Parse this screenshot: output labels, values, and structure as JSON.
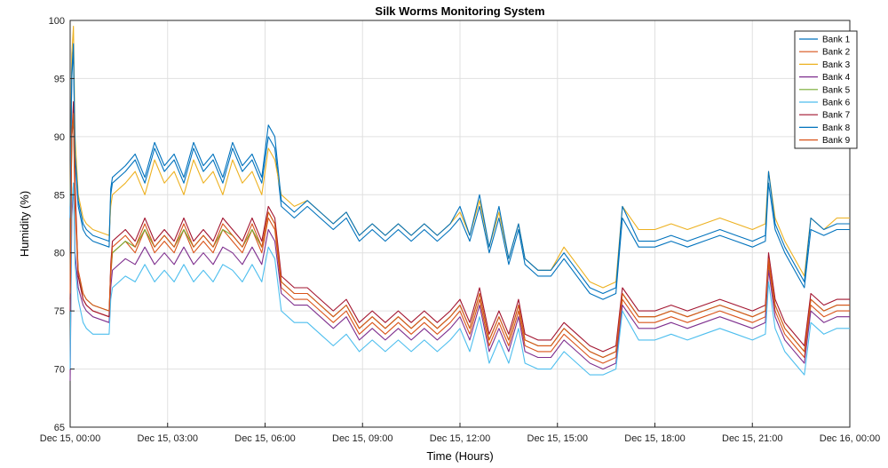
{
  "chart_data": {
    "type": "line",
    "title": "Silk Worms Monitoring System",
    "xlabel": "Time (Hours)",
    "ylabel": "Humidity (%)",
    "xlim": [
      0,
      24
    ],
    "ylim": [
      65,
      100
    ],
    "x_ticks": [
      0,
      3,
      6,
      9,
      12,
      15,
      18,
      21,
      24
    ],
    "x_tick_labels": [
      "Dec 15, 00:00",
      "Dec 15, 03:00",
      "Dec 15, 06:00",
      "Dec 15, 09:00",
      "Dec 15, 12:00",
      "Dec 15, 15:00",
      "Dec 15, 18:00",
      "Dec 15, 21:00",
      "Dec 16, 00:00"
    ],
    "y_ticks": [
      65,
      70,
      75,
      80,
      85,
      90,
      95,
      100
    ],
    "grid": true,
    "legend_position": "top-right",
    "x": [
      0,
      0.05,
      0.1,
      0.15,
      0.25,
      0.4,
      0.5,
      0.7,
      1.2,
      1.25,
      1.3,
      1.7,
      2.0,
      2.3,
      2.6,
      2.9,
      3.2,
      3.5,
      3.8,
      4.1,
      4.4,
      4.7,
      5.0,
      5.3,
      5.6,
      5.9,
      6.1,
      6.3,
      6.5,
      6.9,
      7.3,
      7.7,
      8.1,
      8.5,
      8.9,
      9.3,
      9.7,
      10.1,
      10.5,
      10.9,
      11.3,
      11.7,
      12.0,
      12.3,
      12.6,
      12.9,
      13.2,
      13.5,
      13.8,
      14.0,
      14.4,
      14.8,
      15.2,
      15.6,
      16.0,
      16.4,
      16.8,
      17.0,
      17.5,
      18.0,
      18.5,
      19.0,
      19.5,
      20.0,
      20.5,
      21.0,
      21.4,
      21.5,
      21.7,
      22.0,
      22.6,
      22.8,
      23.2,
      23.6,
      24.0
    ],
    "series": [
      {
        "name": "Bank 1",
        "color": "#0072BD",
        "values": [
          83,
          95,
          97.5,
          88,
          84,
          82,
          81.5,
          81,
          80.5,
          85,
          86,
          87,
          88,
          86,
          89,
          87,
          88,
          86,
          89,
          87,
          88,
          86,
          89,
          87,
          88,
          86,
          90,
          89,
          84,
          83,
          84,
          83,
          82,
          83,
          81,
          82,
          81,
          82,
          81,
          82,
          81,
          82,
          83,
          81,
          84,
          80,
          83,
          79,
          82,
          79,
          78,
          78,
          79.5,
          78,
          76.5,
          76,
          76.5,
          83,
          80.5,
          80.5,
          81,
          80.5,
          81,
          81.5,
          81,
          80.5,
          81,
          86,
          82,
          80,
          77,
          82,
          81.5,
          82,
          82
        ]
      },
      {
        "name": "Bank 2",
        "color": "#D95319",
        "values": [
          76,
          90,
          91.5,
          84,
          78,
          76,
          75.5,
          75,
          74.5,
          78,
          80,
          81,
          80,
          82,
          80,
          81,
          80,
          82,
          80,
          81,
          80,
          82,
          81,
          80,
          82,
          80,
          83,
          82,
          77,
          76,
          76,
          75,
          74,
          75,
          73,
          74,
          73,
          74,
          73,
          74,
          73,
          74,
          75,
          73,
          76,
          72,
          74,
          72,
          75,
          72,
          71.5,
          71.5,
          73,
          72,
          71,
          70.5,
          71,
          76,
          74,
          74,
          74.5,
          74,
          74.5,
          75,
          74.5,
          74,
          74.5,
          79,
          75,
          73,
          71,
          75.5,
          74.5,
          75,
          75
        ]
      },
      {
        "name": "Bank 3",
        "color": "#EDB120",
        "values": [
          84,
          97,
          99.5,
          90,
          85,
          83,
          82.5,
          82,
          81.5,
          84,
          85,
          86,
          87,
          85,
          88,
          86,
          87,
          85,
          88,
          86,
          87,
          85,
          88,
          86,
          87,
          85,
          89,
          88,
          85,
          84,
          84.5,
          83.5,
          82.5,
          83.5,
          81.5,
          82.5,
          81.5,
          82.5,
          81.5,
          82.5,
          81.5,
          82.5,
          83.5,
          81.5,
          84.5,
          80.5,
          83.5,
          79.5,
          82.5,
          79.5,
          78.5,
          78.5,
          80.5,
          79,
          77.5,
          77,
          77.5,
          84,
          82,
          82,
          82.5,
          82,
          82.5,
          83,
          82.5,
          82,
          82.5,
          87,
          83,
          81,
          78,
          83,
          82,
          83,
          83
        ]
      },
      {
        "name": "Bank 4",
        "color": "#7E2F8E",
        "values": [
          69,
          83,
          86,
          80,
          77,
          75.5,
          75,
          74.5,
          74,
          77,
          78.5,
          79.5,
          79,
          80.5,
          79,
          80,
          79,
          80.5,
          79,
          80,
          79,
          80.5,
          80,
          79,
          80.5,
          79,
          82,
          81,
          76.5,
          75.5,
          75.5,
          74.5,
          73.5,
          74.5,
          72.5,
          73.5,
          72.5,
          73.5,
          72.5,
          73.5,
          72.5,
          73.5,
          74.5,
          72.5,
          75.5,
          71.5,
          73.5,
          71.5,
          74.5,
          71.5,
          71,
          71,
          72.5,
          71.5,
          70.5,
          70,
          70.5,
          75.5,
          73.5,
          73.5,
          74,
          73.5,
          74,
          74.5,
          74,
          73.5,
          74,
          78.5,
          74.5,
          72.5,
          70.5,
          75,
          74,
          74.5,
          74.5
        ]
      },
      {
        "name": "Bank 5",
        "color": "#77AC30",
        "values": [
          76,
          90,
          92,
          85,
          78,
          76.5,
          76,
          75.5,
          75,
          78.5,
          80,
          81,
          80.5,
          82,
          80.5,
          81.5,
          80.5,
          82,
          80.5,
          81.5,
          80.5,
          82,
          81.5,
          80.5,
          82,
          80.5,
          83.5,
          82.5,
          77.5,
          76.5,
          76.5,
          75.5,
          74.5,
          75.5,
          73.5,
          74.5,
          73.5,
          74.5,
          73.5,
          74.5,
          73.5,
          74.5,
          75.5,
          73.5,
          76.5,
          72.5,
          74.5,
          72.5,
          75.5,
          72.5,
          72,
          72,
          73.5,
          72.5,
          71.5,
          71,
          71.5,
          76.5,
          74.5,
          74.5,
          75,
          74.5,
          75,
          75.5,
          75,
          74.5,
          75,
          79.5,
          75.5,
          73.5,
          71.5,
          76,
          75,
          75.5,
          75.5
        ]
      },
      {
        "name": "Bank 6",
        "color": "#4DBEEE",
        "values": [
          70,
          84,
          86,
          79,
          76,
          74,
          73.5,
          73,
          73,
          76,
          77,
          78,
          77.5,
          79,
          77.5,
          78.5,
          77.5,
          79,
          77.5,
          78.5,
          77.5,
          79,
          78.5,
          77.5,
          79,
          77.5,
          80.5,
          79.5,
          75,
          74,
          74,
          73,
          72,
          73,
          71.5,
          72.5,
          71.5,
          72.5,
          71.5,
          72.5,
          71.5,
          72.5,
          73.5,
          71.5,
          74.5,
          70.5,
          72.5,
          70.5,
          73.5,
          70.5,
          70,
          70,
          71.5,
          70.5,
          69.5,
          69.5,
          70,
          75,
          72.5,
          72.5,
          73,
          72.5,
          73,
          73.5,
          73,
          72.5,
          73,
          77.5,
          73.5,
          71.5,
          69.5,
          74,
          73,
          73.5,
          73.5
        ]
      },
      {
        "name": "Bank 7",
        "color": "#A2142F",
        "values": [
          75,
          90,
          93,
          86,
          78,
          76,
          75.5,
          75,
          74.5,
          79,
          81,
          82,
          81,
          83,
          81,
          82,
          81,
          83,
          81,
          82,
          81,
          83,
          82,
          81,
          83,
          81,
          84,
          83,
          78,
          77,
          77,
          76,
          75,
          76,
          74,
          75,
          74,
          75,
          74,
          75,
          74,
          75,
          76,
          74,
          77,
          73,
          75,
          73,
          76,
          73,
          72.5,
          72.5,
          74,
          73,
          72,
          71.5,
          72,
          77,
          75,
          75,
          75.5,
          75,
          75.5,
          76,
          75.5,
          75,
          75.5,
          80,
          76,
          74,
          72,
          76.5,
          75.5,
          76,
          76
        ]
      },
      {
        "name": "Bank 8",
        "color": "#0072BD",
        "values": [
          83,
          95.5,
          98,
          88.5,
          84.5,
          82.5,
          82,
          81.5,
          81,
          85.5,
          86.5,
          87.5,
          88.5,
          86.5,
          89.5,
          87.5,
          88.5,
          86.5,
          89.5,
          87.5,
          88.5,
          86.5,
          89.5,
          87.5,
          88.5,
          86.5,
          91,
          90,
          84.5,
          83.5,
          84.5,
          83.5,
          82.5,
          83.5,
          81.5,
          82.5,
          81.5,
          82.5,
          81.5,
          82.5,
          81.5,
          82.5,
          84,
          81.5,
          85,
          80.5,
          84,
          79.5,
          82.5,
          79.5,
          78.5,
          78.5,
          80,
          78.5,
          77,
          76.5,
          77,
          84,
          81,
          81,
          81.5,
          81,
          81.5,
          82,
          81.5,
          81,
          81.5,
          87,
          82.5,
          80.5,
          77.5,
          83,
          82,
          82.5,
          82.5
        ]
      },
      {
        "name": "Bank 9",
        "color": "#D95319",
        "values": [
          76.5,
          90.5,
          92,
          84.5,
          78.5,
          76.5,
          76,
          75.5,
          75,
          78.5,
          80.5,
          81.5,
          80.5,
          82.5,
          80.5,
          81.5,
          80.5,
          82.5,
          80.5,
          81.5,
          80.5,
          82.5,
          81.5,
          80.5,
          82.5,
          80.5,
          83.5,
          82.5,
          77.5,
          76.5,
          76.5,
          75.5,
          74.5,
          75.5,
          73.5,
          74.5,
          73.5,
          74.5,
          73.5,
          74.5,
          73.5,
          74.5,
          75.5,
          73.5,
          76.5,
          72.5,
          74.5,
          72.5,
          75.5,
          72.5,
          72,
          72,
          73.5,
          72.5,
          71.5,
          71,
          71.5,
          76.5,
          74.5,
          74.5,
          75,
          74.5,
          75,
          75.5,
          75,
          74.5,
          75,
          79.5,
          75.5,
          73.5,
          71.5,
          76,
          75,
          75.5,
          75.5
        ]
      }
    ]
  }
}
